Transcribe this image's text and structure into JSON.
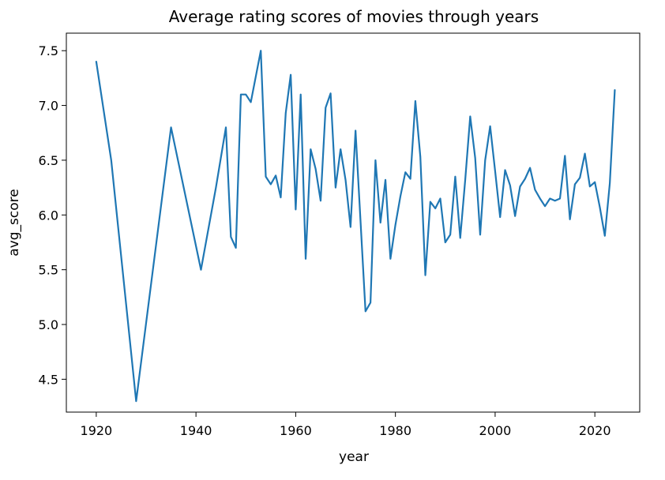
{
  "chart_data": {
    "type": "line",
    "title": "Average rating scores of movies through years",
    "xlabel": "year",
    "ylabel": "avg_score",
    "xlim": [
      1914,
      2029
    ],
    "ylim": [
      4.2,
      7.66
    ],
    "xticks": [
      1920,
      1940,
      1960,
      1980,
      2000,
      2020
    ],
    "yticks": [
      4.5,
      5.0,
      5.5,
      6.0,
      6.5,
      7.0,
      7.5
    ],
    "xtick_labels": [
      "1920",
      "1940",
      "1960",
      "1980",
      "2000",
      "2020"
    ],
    "ytick_labels": [
      "4.5",
      "5.0",
      "5.5",
      "6.0",
      "6.5",
      "7.0",
      "7.5"
    ],
    "grid": false,
    "legend": "none",
    "series": [
      {
        "color": "#1f77b4",
        "x": [
          1920,
          1923,
          1928,
          1935,
          1941,
          1944,
          1946,
          1947,
          1948,
          1949,
          1950,
          1951,
          1953,
          1954,
          1955,
          1956,
          1957,
          1958,
          1959,
          1960,
          1961,
          1962,
          1963,
          1964,
          1965,
          1966,
          1967,
          1968,
          1969,
          1970,
          1971,
          1972,
          1974,
          1975,
          1976,
          1977,
          1978,
          1979,
          1980,
          1981,
          1982,
          1983,
          1984,
          1985,
          1986,
          1987,
          1988,
          1989,
          1990,
          1991,
          1992,
          1993,
          1994,
          1995,
          1996,
          1997,
          1998,
          1999,
          2000,
          2001,
          2002,
          2003,
          2004,
          2005,
          2006,
          2007,
          2008,
          2009,
          2010,
          2011,
          2012,
          2013,
          2014,
          2015,
          2016,
          2017,
          2018,
          2019,
          2020,
          2021,
          2022,
          2023,
          2024
        ],
        "y": [
          7.4,
          6.5,
          4.3,
          6.8,
          5.5,
          6.25,
          6.8,
          5.8,
          5.7,
          7.1,
          7.1,
          7.03,
          7.5,
          6.35,
          6.28,
          6.36,
          6.16,
          6.93,
          7.28,
          6.05,
          7.1,
          5.6,
          6.6,
          6.42,
          6.13,
          6.98,
          7.11,
          6.25,
          6.6,
          6.32,
          5.89,
          6.77,
          5.12,
          5.2,
          6.5,
          5.93,
          6.32,
          5.6,
          5.91,
          6.17,
          6.39,
          6.33,
          7.04,
          6.53,
          5.45,
          6.12,
          6.06,
          6.15,
          5.75,
          5.82,
          6.35,
          5.79,
          6.32,
          6.9,
          6.52,
          5.82,
          6.5,
          6.81,
          6.4,
          5.98,
          6.41,
          6.27,
          5.99,
          6.26,
          6.33,
          6.43,
          6.23,
          6.15,
          6.08,
          6.15,
          6.13,
          6.15,
          6.54,
          5.96,
          6.28,
          6.34,
          6.56,
          6.26,
          6.3,
          6.07,
          5.81,
          6.29,
          7.14
        ]
      }
    ]
  }
}
